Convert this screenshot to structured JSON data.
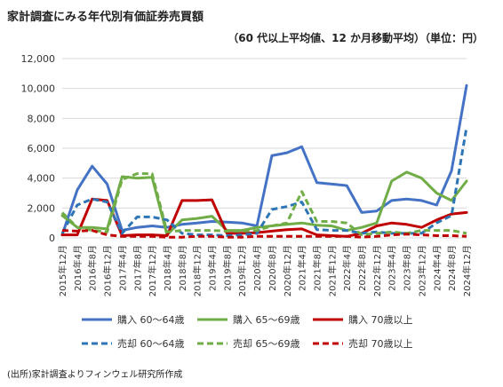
{
  "chart_data": {
    "type": "line",
    "title": "家計調査にみる年代別有価証券売買額",
    "subtitle": "（60 代以上平均値、12 か月移動平均）（単位：円）",
    "source": "(出所)家計調査よりフィンウェル研究所作成",
    "ylim": [
      0,
      12000
    ],
    "yticks": [
      "0",
      "2,000",
      "4,000",
      "6,000",
      "8,000",
      "10,000",
      "12,000"
    ],
    "grid": true,
    "legend_position": "bottom",
    "x": [
      "2015年12月",
      "2016年4月",
      "2016年8月",
      "2016年12月",
      "2017年4月",
      "2017年8月",
      "2017年12月",
      "2018年4月",
      "2018年8月",
      "2018年12月",
      "2019年4月",
      "2019年8月",
      "2019年12月",
      "2020年4月",
      "2020年8月",
      "2020年12月",
      "2021年4月",
      "2021年8月",
      "2021年12月",
      "2022年4月",
      "2022年8月",
      "2022年12月",
      "2023年4月",
      "2023年8月",
      "2023年12月",
      "2024年4月",
      "2024年8月",
      "2024年12月"
    ],
    "series": [
      {
        "name": "購入 60～64歳",
        "color": "#4472C4",
        "dash": false,
        "values": [
          200,
          3200,
          4800,
          3600,
          500,
          700,
          800,
          700,
          900,
          1000,
          1100,
          1050,
          1000,
          800,
          5500,
          5700,
          6100,
          3700,
          3600,
          3500,
          1700,
          1800,
          2500,
          2600,
          2500,
          2200,
          4500,
          10200
        ]
      },
      {
        "name": "購入 65～69歳",
        "color": "#70AD47",
        "dash": false,
        "values": [
          1500,
          700,
          700,
          600,
          4100,
          4000,
          4050,
          200,
          1200,
          1300,
          1450,
          500,
          500,
          700,
          800,
          900,
          1000,
          850,
          800,
          500,
          700,
          1000,
          3800,
          4400,
          4000,
          3000,
          2500,
          3800
        ]
      },
      {
        "name": "購入 70歳以上",
        "color": "#C00000",
        "dash": false,
        "values": [
          200,
          200,
          2600,
          2500,
          150,
          200,
          200,
          150,
          2500,
          2500,
          2550,
          300,
          300,
          350,
          450,
          550,
          600,
          200,
          150,
          100,
          300,
          800,
          1000,
          900,
          700,
          1200,
          1600,
          1700
        ]
      },
      {
        "name": "売却 60～64歳",
        "color": "#2E75B6",
        "dash": true,
        "values": [
          300,
          2200,
          2600,
          2400,
          300,
          1400,
          1400,
          1200,
          300,
          200,
          200,
          150,
          200,
          300,
          1900,
          2100,
          2400,
          550,
          500,
          500,
          300,
          400,
          300,
          300,
          300,
          1000,
          1500,
          7400
        ]
      },
      {
        "name": "売却 65～69歳",
        "color": "#70AD47",
        "dash": true,
        "values": [
          1700,
          700,
          500,
          400,
          3900,
          4300,
          4300,
          400,
          500,
          500,
          500,
          450,
          450,
          500,
          800,
          1000,
          3100,
          1100,
          1100,
          1000,
          200,
          300,
          400,
          300,
          500,
          500,
          500,
          300
        ]
      },
      {
        "name": "売却 70歳以上",
        "color": "#C00000",
        "dash": true,
        "values": [
          500,
          450,
          500,
          200,
          100,
          100,
          100,
          50,
          50,
          100,
          100,
          50,
          50,
          100,
          100,
          100,
          100,
          100,
          100,
          100,
          50,
          100,
          200,
          250,
          200,
          150,
          150,
          100
        ]
      }
    ]
  }
}
